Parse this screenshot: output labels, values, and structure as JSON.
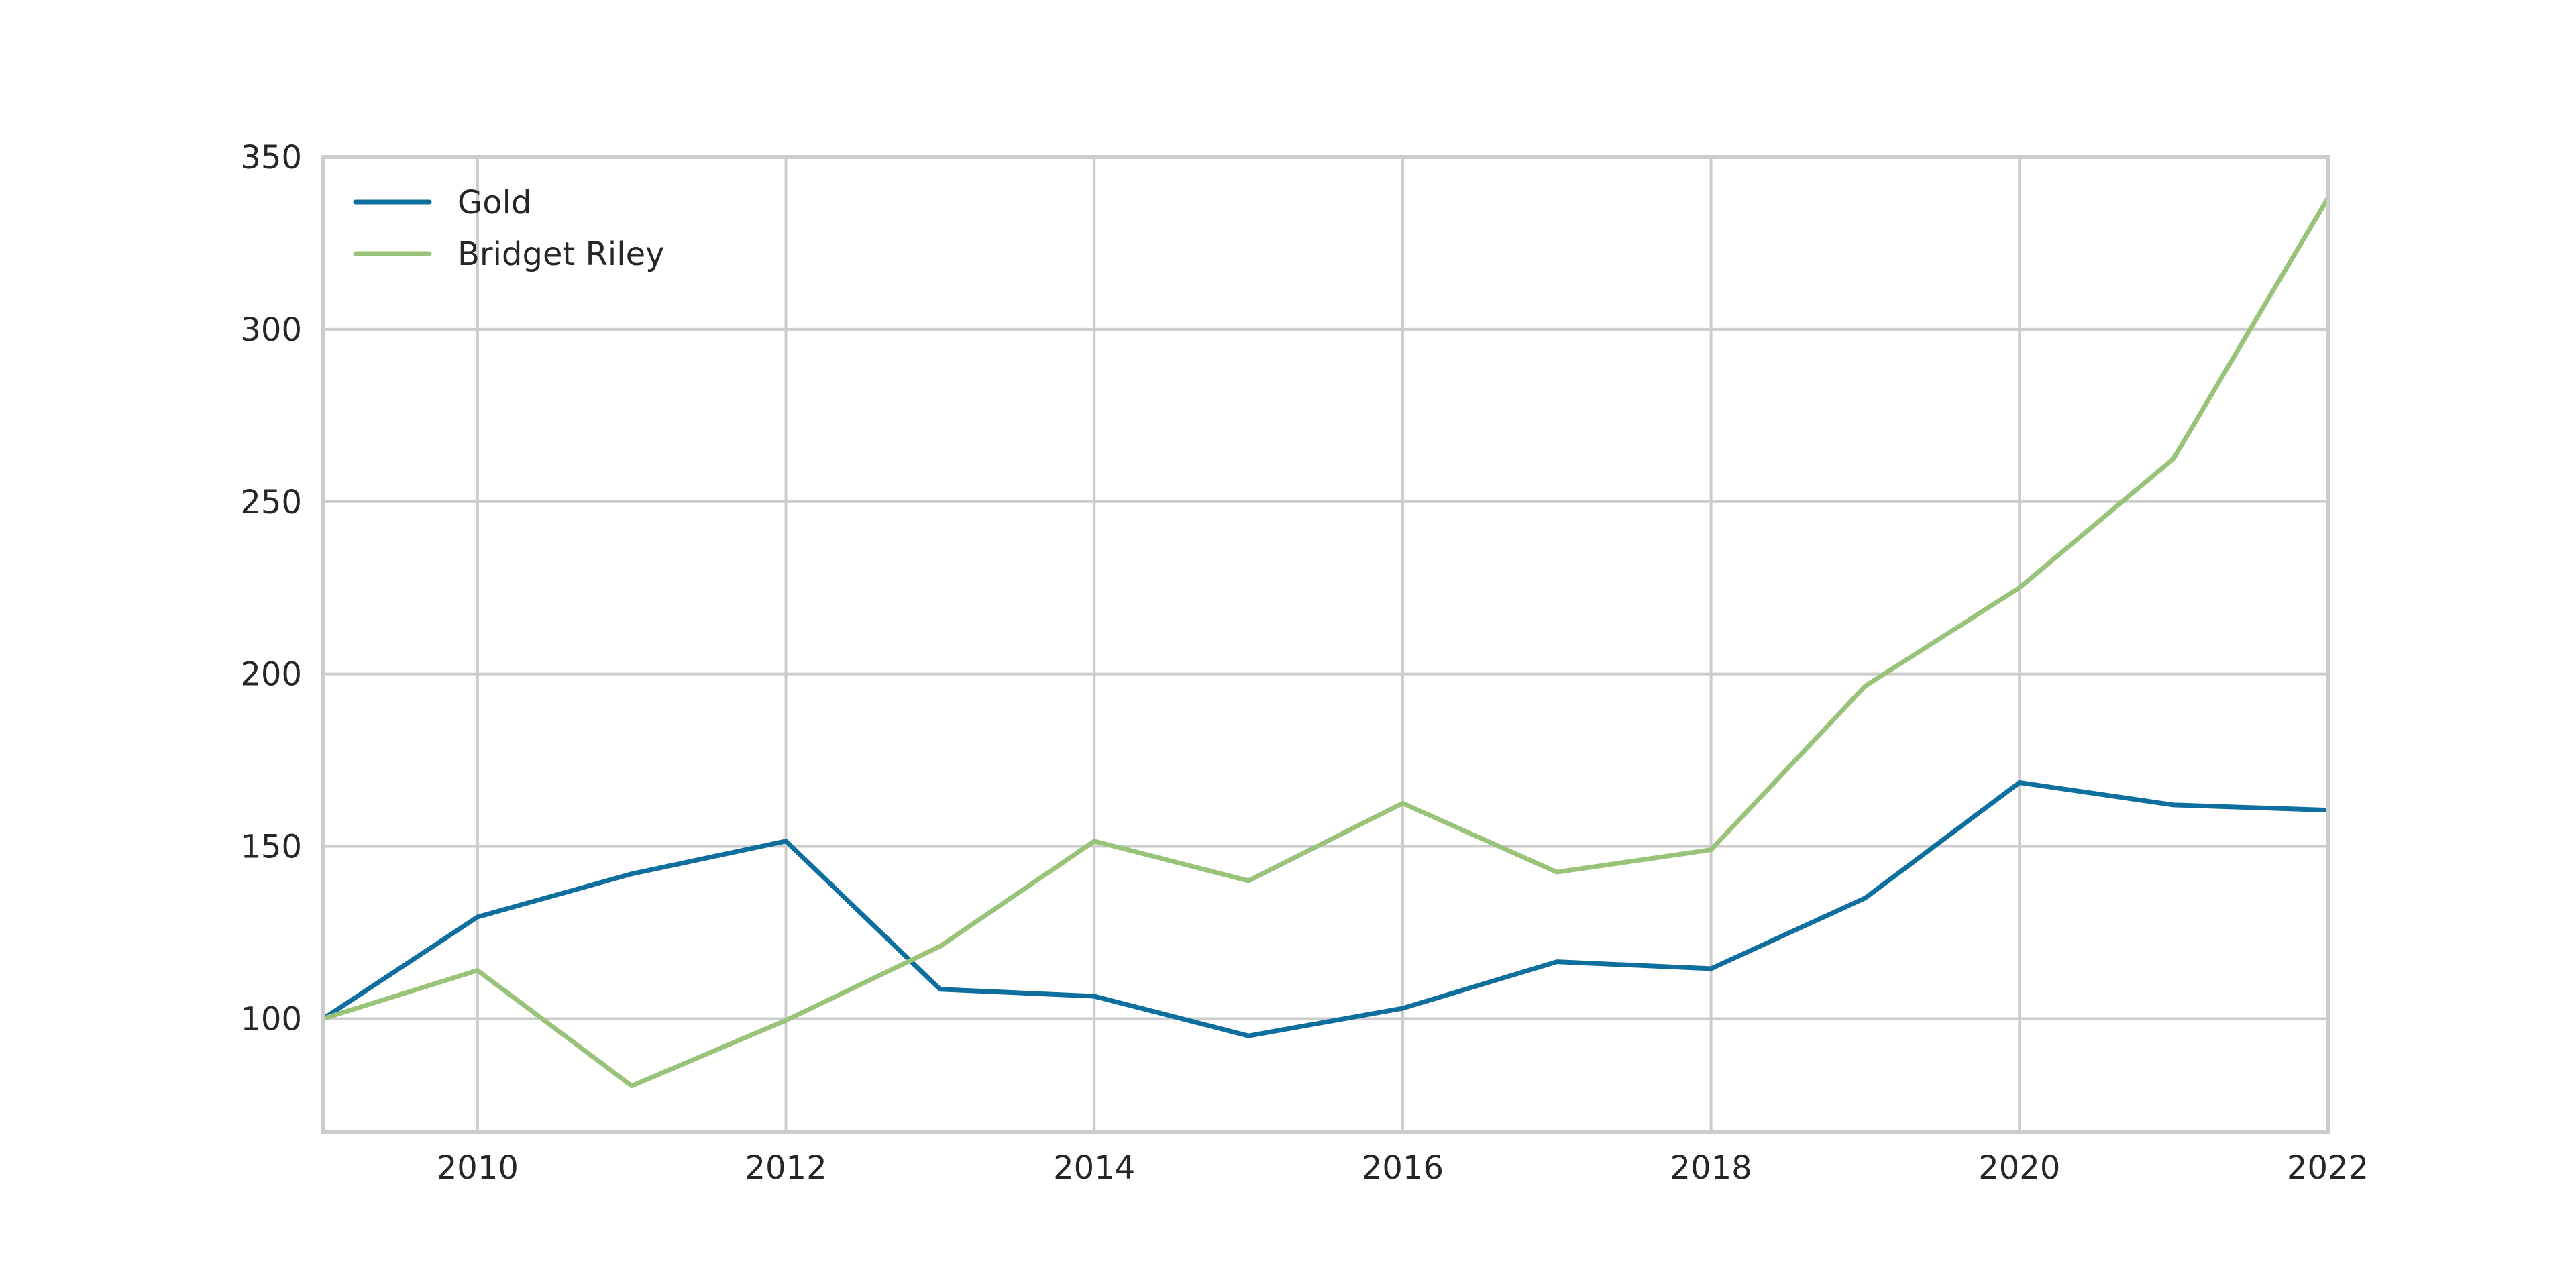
{
  "chart_data": {
    "type": "line",
    "title": "",
    "xlabel": "",
    "ylabel": "",
    "x": [
      2009,
      2010,
      2011,
      2012,
      2013,
      2014,
      2015,
      2016,
      2017,
      2018,
      2019,
      2020,
      2021,
      2022
    ],
    "xlim": [
      2009,
      2022
    ],
    "ylim": [
      67,
      350
    ],
    "x_ticks": [
      2010,
      2012,
      2014,
      2016,
      2018,
      2020,
      2022
    ],
    "y_ticks": [
      100,
      150,
      200,
      250,
      300,
      350
    ],
    "grid": true,
    "legend": {
      "placement": "top-left"
    },
    "series": [
      {
        "name": "Gold",
        "color": "#0e6e9e",
        "values": [
          100,
          129.5,
          142,
          151.5,
          108.5,
          106.5,
          95,
          103,
          116.5,
          114.5,
          135,
          168.5,
          162,
          160.5
        ]
      },
      {
        "name": "Bridget Riley",
        "color": "#98c379",
        "values": [
          100,
          114,
          80.5,
          99.5,
          121,
          151.5,
          140,
          162.5,
          142.5,
          149,
          196.5,
          225,
          262.5,
          338
        ]
      }
    ]
  }
}
